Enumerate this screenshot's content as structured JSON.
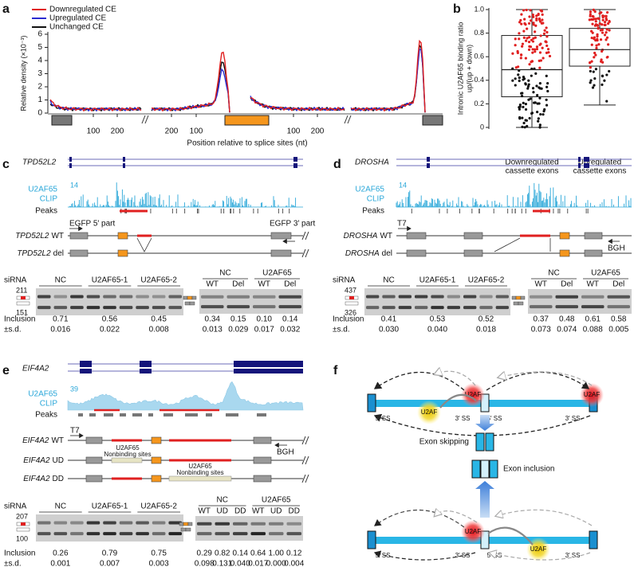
{
  "panel_a": {
    "letter": "a",
    "legend": [
      "Downregulated CE",
      "Upregulated CE",
      "Unchanged CE"
    ],
    "ylabel": "Relative density (×10⁻³)",
    "yticks": [
      "0",
      "1",
      "2",
      "3",
      "4",
      "5",
      "6"
    ],
    "xticks": [
      "100",
      "200",
      "200",
      "100",
      "100",
      "200"
    ],
    "xlabel": "Position relative to splice sites (nt)"
  },
  "panel_b": {
    "letter": "b",
    "ylabel": [
      "Intronic U2AF65 binding ratio",
      "up/(up + down)"
    ],
    "yticks": [
      "0",
      "0.2",
      "0.4",
      "0.6",
      "0.8",
      "1.0"
    ],
    "categories": [
      [
        "Downregulated",
        "cassette exons"
      ],
      [
        "Upregulated",
        "cassette exons"
      ]
    ]
  },
  "panel_c": {
    "letter": "c",
    "gene": "TPD52L2",
    "clip": [
      "U2AF65",
      "CLIP"
    ],
    "clip_max": "14",
    "peaks": "Peaks",
    "primer_left": "EGFP 5′ part",
    "primer_right": "EGFP 3′ part",
    "constructs": [
      {
        "gene": "TPD52L2",
        "suffix": "WT"
      },
      {
        "gene": "TPD52L2",
        "suffix": "del"
      }
    ],
    "sirna_label": "siRNA",
    "sizes": [
      "211",
      "151"
    ],
    "inclusion_label": "Inclusion",
    "sd_label": "±s.d.",
    "gel_left": {
      "groups": [
        "NC",
        "U2AF65-1",
        "U2AF65-2"
      ],
      "inclusion": [
        "0.71",
        "0.56",
        "0.45"
      ],
      "sd": [
        "0.016",
        "0.022",
        "0.008"
      ]
    },
    "gel_right": {
      "groups": [
        "NC",
        "U2AF65"
      ],
      "lanes": [
        "WT",
        "Del",
        "WT",
        "Del"
      ],
      "inclusion": [
        "0.34",
        "0.15",
        "0.10",
        "0.14"
      ],
      "sd": [
        "0.013",
        "0.029",
        "0.017",
        "0.032"
      ]
    }
  },
  "panel_d": {
    "letter": "d",
    "gene": "DROSHA",
    "clip": [
      "U2AF65",
      "CLIP"
    ],
    "clip_max": "14",
    "peaks": "Peaks",
    "primer_left": "T7",
    "primer_right": "BGH",
    "constructs": [
      {
        "gene": "DROSHA",
        "suffix": "WT"
      },
      {
        "gene": "DROSHA",
        "suffix": "del"
      }
    ],
    "sirna_label": "siRNA",
    "sizes": [
      "437",
      "326"
    ],
    "inclusion_label": "Inclusion",
    "sd_label": "±s.d.",
    "gel_left": {
      "groups": [
        "NC",
        "U2AF65-1",
        "U2AF65-2"
      ],
      "inclusion": [
        "0.41",
        "0.53",
        "0.52"
      ],
      "sd": [
        "0.030",
        "0.040",
        "0.018"
      ]
    },
    "gel_right": {
      "groups": [
        "NC",
        "U2AF65"
      ],
      "lanes": [
        "WT",
        "Del",
        "WT",
        "Del"
      ],
      "inclusion": [
        "0.37",
        "0.48",
        "0.61",
        "0.58"
      ],
      "sd": [
        "0.073",
        "0.074",
        "0.088",
        "0.005"
      ]
    }
  },
  "panel_e": {
    "letter": "e",
    "gene": "EIF4A2",
    "clip": [
      "U2AF65",
      "CLIP"
    ],
    "clip_max": "39",
    "peaks": "Peaks",
    "primer_left": "T7",
    "primer_right": "BGH",
    "constructs": [
      {
        "gene": "EIF4A2",
        "suffix": "WT"
      },
      {
        "gene": "EIF4A2",
        "suffix": "UD"
      },
      {
        "gene": "EIF4A2",
        "suffix": "DD"
      }
    ],
    "annotations": [
      [
        "U2AF65",
        "Nonbinding sites"
      ],
      [
        "U2AF65",
        "Nonbinding sites"
      ]
    ],
    "sirna_label": "siRNA",
    "sizes": [
      "207",
      "100"
    ],
    "inclusion_label": "Inclusion",
    "sd_label": "±s.d.",
    "gel_left": {
      "groups": [
        "NC",
        "U2AF65-1",
        "U2AF65-2"
      ],
      "inclusion": [
        "0.26",
        "0.79",
        "0.75"
      ],
      "sd": [
        "0.001",
        "0.007",
        "0.003"
      ]
    },
    "gel_right": {
      "groups": [
        "NC",
        "U2AF65"
      ],
      "lanes": [
        "WT",
        "UD",
        "DD",
        "WT",
        "UD",
        "DD"
      ],
      "inclusion": [
        "0.29",
        "0.82",
        "0.14",
        "0.64",
        "1.00",
        "0.12"
      ],
      "sd": [
        "0.098",
        "0.131",
        "0.040",
        "0.017",
        "0.000",
        "0.004"
      ]
    }
  },
  "panel_f": {
    "letter": "f",
    "top": {
      "factors": [
        "U2AF",
        "U2AF",
        "U2AF"
      ],
      "sites": [
        "5′ SS",
        "3′ SS",
        "5′ SS",
        "3′ SS"
      ]
    },
    "bottom": {
      "factors": [
        "U2AF",
        "U2AF"
      ],
      "sites": [
        "5′ SS",
        "3′ SS",
        "5′ SS",
        "3′ SS"
      ]
    },
    "skipping": "Exon skipping",
    "inclusion": "Exon inclusion"
  }
}
